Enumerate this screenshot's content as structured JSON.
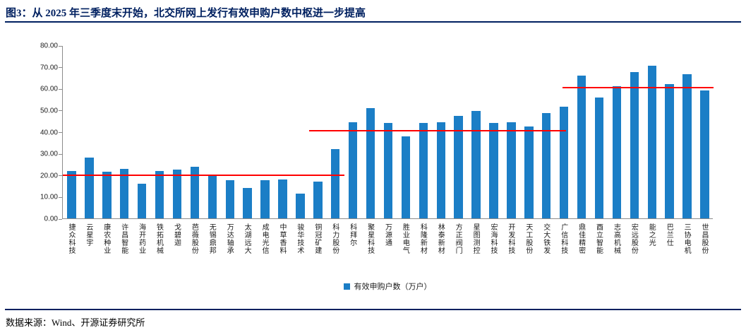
{
  "title": "图3：从 2025 年三季度末开始，北交所网上发行有效申购户数中枢进一步提高",
  "footer": "数据来源：Wind、开源证券研究所",
  "colors": {
    "bar": "#1b7ec6",
    "median_line": "#ff0000",
    "title_navy": "#002060",
    "axis": "#8c8c8c"
  },
  "chart_data": {
    "type": "bar",
    "title": "图3：从 2025 年三季度末开始，北交所网上发行有效申购户数中枢进一步提高",
    "legend": "有效申购户数（万户）",
    "legend_position": "bottom-center",
    "grid": "off",
    "xlabel": "",
    "ylabel": "",
    "ylim": [
      0,
      80
    ],
    "yticks": [
      "0.00",
      "10.00",
      "20.00",
      "30.00",
      "40.00",
      "50.00",
      "60.00",
      "70.00",
      "80.00"
    ],
    "categories": [
      "捷众科技",
      "云星宇",
      "康农种业",
      "许昌智能",
      "海开药业",
      "铁拓机械",
      "戈碧迦",
      "芭薇股份",
      "无锡鼎邦",
      "万达轴承",
      "太湖远大",
      "成电光信",
      "中草香料",
      "骏华技术",
      "铜冠矿建",
      "科力股份",
      "科拜尔",
      "聚星科技",
      "万源通",
      "胜业电气",
      "科隆新材",
      "林泰新材",
      "方正阀门",
      "星图测控",
      "宏海科技",
      "开发科技",
      "天工股份",
      "交大铁发",
      "广信科技",
      "鼎佳精密",
      "酉立智能",
      "志高机械",
      "宏远股份",
      "能之光",
      "巴兰仕",
      "三协电机",
      "世昌股份"
    ],
    "values": [
      22,
      28,
      21.5,
      23,
      16,
      22,
      22.5,
      24,
      20,
      17.5,
      14,
      17.5,
      18,
      11.5,
      17,
      32,
      44.5,
      51,
      44,
      38,
      44,
      44.5,
      47.5,
      49.5,
      44,
      44.5,
      42.5,
      48.5,
      51.5,
      66,
      56,
      61,
      67.5,
      70.5,
      62,
      66.5,
      59
    ],
    "median_lines": [
      {
        "value": 20.0,
        "from": 0,
        "to": 16
      },
      {
        "value": 40.4,
        "from": 14,
        "to": 28.6
      },
      {
        "value": 60.5,
        "from": 28.4,
        "to": 37
      }
    ]
  }
}
